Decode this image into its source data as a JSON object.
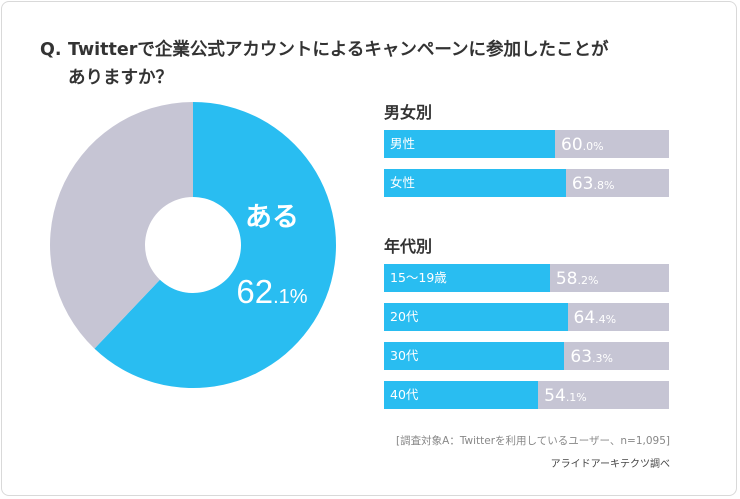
{
  "question": {
    "prefix": "Q.",
    "line1": "Twitterで企業公式アカウントによるキャンペーンに参加したことが",
    "line2": "ありますか？"
  },
  "chart_data": [
    {
      "type": "pie",
      "title": "",
      "slices": [
        {
          "label": "ある",
          "value": 62.1,
          "color": "#29bdf1"
        },
        {
          "label": "",
          "value": 37.9,
          "color": "#c6c5d4"
        }
      ],
      "center_label": "ある",
      "value_int": "62",
      "value_dec": ".1%"
    },
    {
      "type": "bar",
      "title": "男女別",
      "categories": [
        "男性",
        "女性"
      ],
      "values": [
        60.0,
        63.8
      ],
      "value_int": [
        "60",
        "63"
      ],
      "value_dec": [
        ".0%",
        ".8%"
      ],
      "ylim": [
        0,
        100
      ]
    },
    {
      "type": "bar",
      "title": "年代別",
      "categories": [
        "15〜19歳",
        "20代",
        "30代",
        "40代"
      ],
      "values": [
        58.2,
        64.4,
        63.3,
        54.1
      ],
      "value_int": [
        "58",
        "64",
        "63",
        "54"
      ],
      "value_dec": [
        ".2%",
        ".4%",
        ".3%",
        ".1%"
      ],
      "ylim": [
        0,
        100
      ]
    }
  ],
  "colors": {
    "accent": "#29bdf1",
    "remainder": "#c6c5d4"
  },
  "footer": {
    "source": "[調査対象A：Twitterを利用しているユーザー、n=1,095]",
    "credit": "アライドアーキテクツ調べ"
  }
}
